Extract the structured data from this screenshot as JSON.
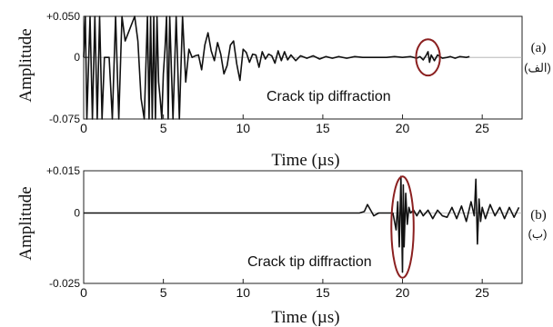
{
  "chart_data": [
    {
      "type": "line",
      "panel_label": "(a)",
      "panel_label_alt": "(الف)",
      "xlabel": "Time (µs)",
      "ylabel": "Amplitude",
      "xlim": [
        0,
        27.5
      ],
      "ylim": [
        -0.075,
        0.05
      ],
      "xticks": [
        0,
        5,
        10,
        15,
        20,
        25
      ],
      "yticks": [
        {
          "value": 0.05,
          "label": "+0.050"
        },
        {
          "value": 0,
          "label": "0"
        },
        {
          "value": -0.075,
          "label": "-0.075"
        }
      ],
      "annotation": "Crack tip diffraction",
      "highlight": {
        "x_center": 21.6,
        "y_center": 0.0,
        "x_radius": 0.75,
        "y_radius": 0.022
      },
      "grid": false,
      "series": [
        {
          "x": [
            0,
            0.1,
            0.2,
            0.4,
            0.55,
            0.7,
            0.85,
            1.0,
            1.15,
            1.3,
            1.6,
            1.8,
            2.0,
            2.2,
            2.4,
            2.6,
            2.8,
            3.0,
            3.2,
            3.4,
            3.6,
            3.8,
            4.0,
            4.1,
            4.2,
            4.3,
            4.4,
            4.5,
            4.6,
            4.7,
            4.8,
            4.9,
            5.0,
            5.1,
            5.2,
            5.3,
            5.4,
            5.6,
            5.8,
            6.0,
            6.2,
            6.4,
            6.6,
            6.8,
            7.0,
            7.2,
            7.4,
            7.6,
            7.8,
            8.0,
            8.2,
            8.4,
            8.6,
            8.8,
            9.0,
            9.2,
            9.4,
            9.6,
            9.8,
            10.0,
            10.2,
            10.4,
            10.6,
            10.8,
            11.0,
            11.2,
            11.4,
            11.6,
            11.8,
            12.0,
            12.2,
            12.4,
            12.6,
            12.8,
            13.0,
            13.3,
            13.6,
            14.0,
            14.4,
            14.8,
            15.2,
            15.6,
            16.0,
            16.5,
            17.0,
            17.5,
            18.0,
            18.5,
            19.0,
            19.5,
            20.0,
            20.5,
            20.9,
            21.1,
            21.3,
            21.5,
            21.6,
            21.7,
            21.8,
            22.0,
            22.2,
            22.5,
            22.8,
            23.0,
            23.3,
            23.6,
            24.0,
            24.2
          ],
          "values": [
            0,
            0.05,
            -0.075,
            0.05,
            -0.075,
            0.05,
            -0.075,
            0.05,
            -0.075,
            0,
            0,
            -0.075,
            0.05,
            -0.075,
            0.05,
            0.02,
            0.03,
            0.04,
            0.05,
            0.02,
            -0.05,
            -0.075,
            0.05,
            -0.075,
            0.05,
            -0.075,
            0.05,
            -0.075,
            0.05,
            -0.03,
            -0.05,
            -0.075,
            -0.02,
            0.01,
            0.05,
            -0.075,
            0.05,
            -0.075,
            0.05,
            -0.075,
            0.05,
            -0.03,
            0.01,
            0.0,
            0.002,
            0.003,
            -0.015,
            0.015,
            0.03,
            0.008,
            -0.004,
            0.018,
            0.004,
            -0.02,
            -0.01,
            0.015,
            0.02,
            -0.008,
            -0.028,
            0.01,
            0.006,
            -0.006,
            0.004,
            0.003,
            -0.012,
            0.007,
            -0.002,
            0.004,
            0.002,
            -0.007,
            0.008,
            -0.004,
            0.007,
            -0.003,
            0.003,
            -0.004,
            0.002,
            -0.001,
            0.002,
            -0.002,
            0.001,
            -0.001,
            0.001,
            -0.001,
            0.001,
            0.0,
            0.0,
            0.0,
            0.0,
            0.001,
            0.0,
            0.001,
            -0.001,
            0.001,
            -0.003,
            0.003,
            0.007,
            -0.006,
            0.003,
            -0.004,
            0.003,
            -0.001,
            0.0,
            0.001,
            -0.001,
            0.001,
            0.0,
            0.001
          ]
        }
      ]
    },
    {
      "type": "line",
      "panel_label": "(b)",
      "panel_label_alt": "(ب)",
      "xlabel": "Time (µs)",
      "ylabel": "Amplitude",
      "xlim": [
        0,
        27.5
      ],
      "ylim": [
        -0.025,
        0.015
      ],
      "xticks": [
        0,
        5,
        10,
        15,
        20,
        25
      ],
      "yticks": [
        {
          "value": 0.015,
          "label": "+0.015"
        },
        {
          "value": 0,
          "label": "0"
        },
        {
          "value": -0.025,
          "label": "-0.025"
        }
      ],
      "annotation": "Crack tip diffraction",
      "highlight": {
        "x_center": 20.0,
        "y_center": -0.005,
        "x_radius": 0.7,
        "y_radius": 0.018
      },
      "grid": false,
      "series": [
        {
          "x": [
            0,
            17.3,
            17.6,
            17.8,
            18.0,
            18.2,
            18.5,
            19.0,
            19.4,
            19.6,
            19.7,
            19.8,
            19.9,
            20.0,
            20.05,
            20.1,
            20.2,
            20.3,
            20.4,
            20.5,
            20.7,
            20.9,
            21.1,
            21.3,
            21.6,
            21.9,
            22.2,
            22.5,
            22.8,
            23.1,
            23.4,
            23.7,
            24.0,
            24.3,
            24.5,
            24.6,
            24.7,
            24.8,
            24.9,
            25.0,
            25.2,
            25.5,
            25.8,
            26.1,
            26.4,
            26.7,
            27.0,
            27.3
          ],
          "values": [
            0,
            0,
            0.0005,
            0.003,
            0.001,
            -0.001,
            0.0,
            0.0,
            0.0,
            -0.006,
            0.004,
            -0.012,
            0.013,
            -0.021,
            0.01,
            -0.012,
            0.007,
            -0.004,
            0.002,
            0.0,
            0.001,
            -0.001,
            0.001,
            -0.001,
            0.001,
            -0.002,
            0.001,
            -0.001,
            -0.0015,
            0.002,
            -0.002,
            0.0025,
            -0.003,
            0.004,
            -0.001,
            0.012,
            -0.011,
            0.005,
            -0.003,
            0.002,
            -0.002,
            0.003,
            -0.001,
            0.002,
            -0.002,
            0.002,
            -0.0015,
            0.002
          ]
        }
      ]
    }
  ]
}
